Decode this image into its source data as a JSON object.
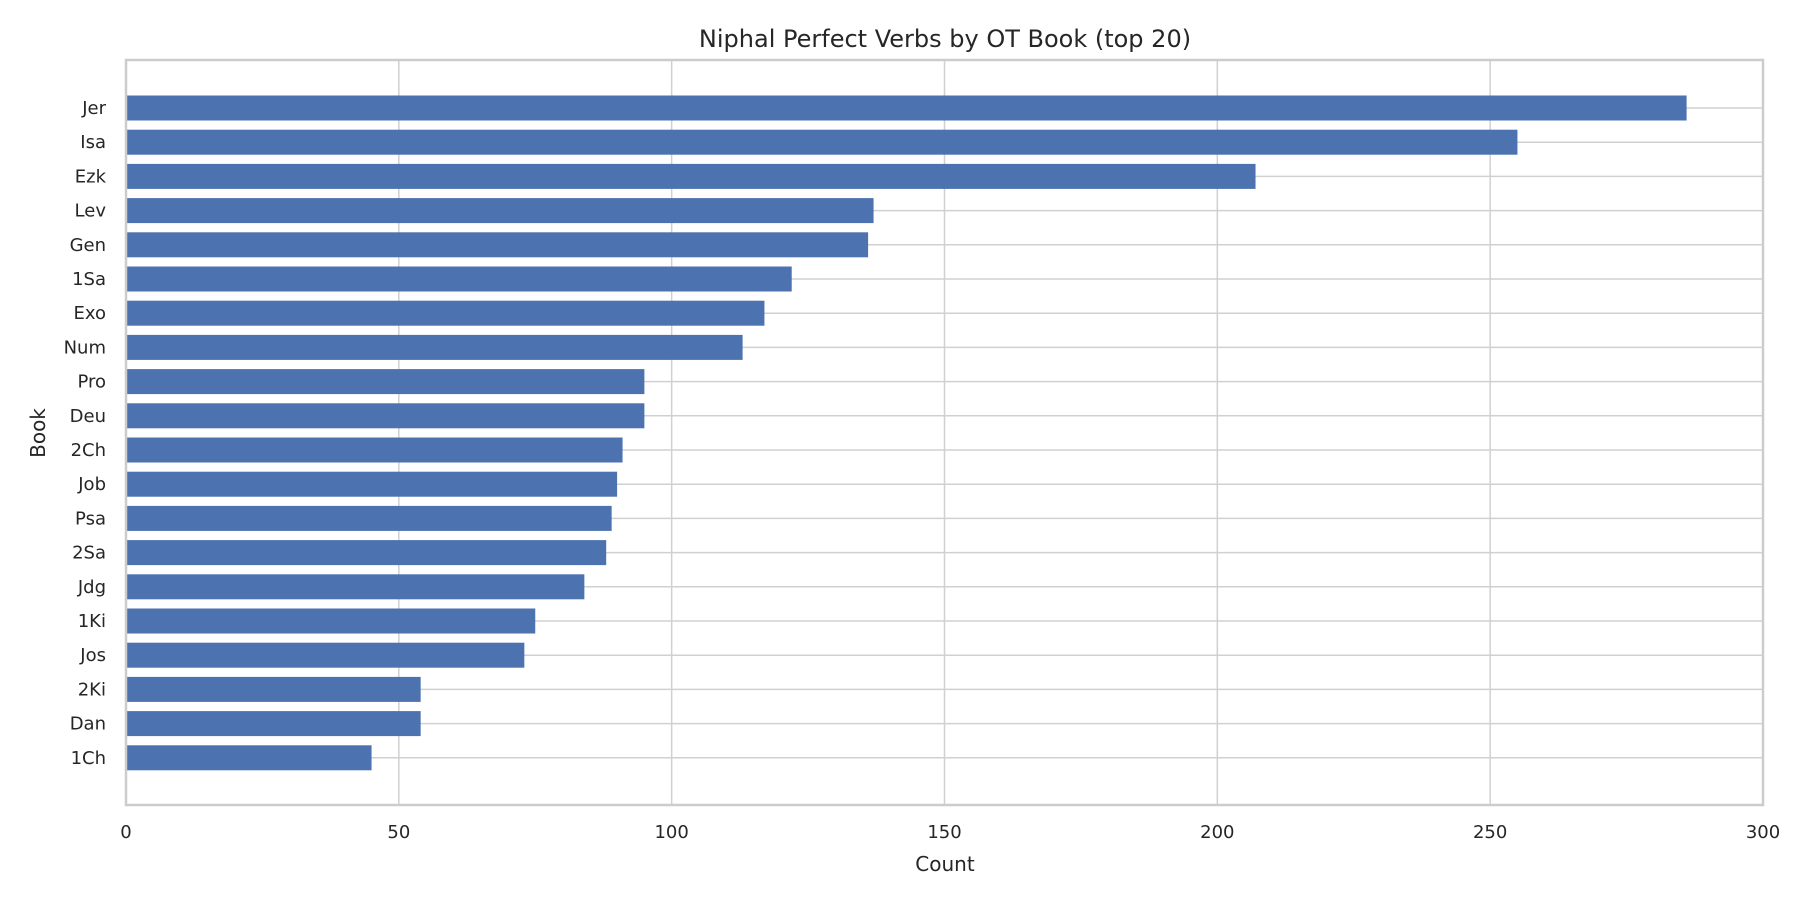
{
  "chart_data": {
    "type": "bar",
    "orientation": "horizontal",
    "title": "Niphal Perfect Verbs by OT Book (top 20)",
    "xlabel": "Count",
    "ylabel": "Book",
    "xlim": [
      0,
      300
    ],
    "xticks": [
      0,
      50,
      100,
      150,
      200,
      250,
      300
    ],
    "grid": true,
    "bar_color": "#4c72b0",
    "categories": [
      "Jer",
      "Isa",
      "Ezk",
      "Lev",
      "Gen",
      "1Sa",
      "Exo",
      "Num",
      "Pro",
      "Deu",
      "2Ch",
      "Job",
      "Psa",
      "2Sa",
      "Jdg",
      "1Ki",
      "Jos",
      "2Ki",
      "Dan",
      "1Ch"
    ],
    "values": [
      286,
      255,
      207,
      137,
      136,
      122,
      117,
      113,
      95,
      95,
      91,
      90,
      89,
      88,
      84,
      75,
      73,
      54,
      54,
      45
    ]
  }
}
